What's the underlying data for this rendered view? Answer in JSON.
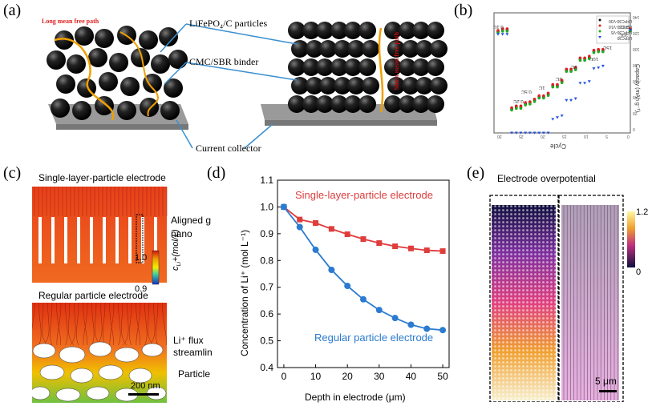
{
  "panels": {
    "a": {
      "label": "(a)",
      "long_path": "Long mean free path",
      "short_path": "Short mean free path",
      "particles": "LiFePO₄/C particles",
      "binder": "CMC/SBR binder",
      "collector": "Current collector"
    },
    "b": {
      "label": "(b)",
      "xlabel": "Cycle",
      "ylabel": "Capacity (mAh g⁻¹)",
      "legend": [
        "LFPC30-V30",
        "LFPC30-V10",
        "LFPC30-V5",
        "LFPC30"
      ],
      "rates": [
        "0.1C",
        "0.2C",
        "0.5C",
        "1C",
        "2C",
        "5C",
        "10C",
        "15C",
        "20C",
        "0.1C"
      ],
      "yticks": [
        "0",
        "20",
        "40",
        "60",
        "80",
        "100",
        "120",
        "140"
      ],
      "xticks": [
        "0",
        "5",
        "10",
        "15",
        "20",
        "25",
        "30"
      ]
    },
    "c": {
      "label": "(c)",
      "top_title": "Single-layer-particle electrode",
      "aligned": "Aligned g",
      "nano": "nano",
      "colorbar_max": "1.0",
      "colorbar_min": "0.9",
      "colorbar_label": "c",
      "colorbar_sub": "Li",
      "colorbar_unit": "+(mol/L)",
      "bottom_title": "Regular particle electrode",
      "flux_line1": "Li⁺ flux",
      "flux_line2": "streamlin",
      "particle": "Particle",
      "scale": "200 nm"
    },
    "d": {
      "label": "(d)"
    },
    "e": {
      "label": "(e)",
      "title": "Electrode overpotential",
      "cb_max": "1.2",
      "cb_min": "0",
      "scale": "5 μm"
    }
  },
  "chart_data": {
    "type": "line",
    "xlabel": "Depth in electrode (μm)",
    "ylabel": "Concentration of Li⁺ (mol L⁻¹)",
    "xlim": [
      -2,
      52
    ],
    "ylim": [
      0.4,
      1.1
    ],
    "xticks": [
      0,
      10,
      20,
      30,
      40,
      50
    ],
    "yticks": [
      0.4,
      0.5,
      0.6,
      0.7,
      0.8,
      0.9,
      1.0,
      1.1
    ],
    "series": [
      {
        "name": "Single-layer-particle electrode",
        "color": "#e03c3c",
        "x": [
          0,
          5,
          10,
          15,
          20,
          25,
          30,
          35,
          40,
          45,
          50
        ],
        "y": [
          1.0,
          0.953,
          0.94,
          0.918,
          0.898,
          0.88,
          0.865,
          0.853,
          0.845,
          0.838,
          0.835
        ]
      },
      {
        "name": "Regular particle electrode",
        "color": "#2b7bd0",
        "x": [
          0,
          5,
          10,
          15,
          20,
          25,
          30,
          35,
          40,
          45,
          50
        ],
        "y": [
          1.0,
          0.925,
          0.84,
          0.765,
          0.705,
          0.655,
          0.615,
          0.585,
          0.56,
          0.545,
          0.54
        ]
      }
    ]
  }
}
